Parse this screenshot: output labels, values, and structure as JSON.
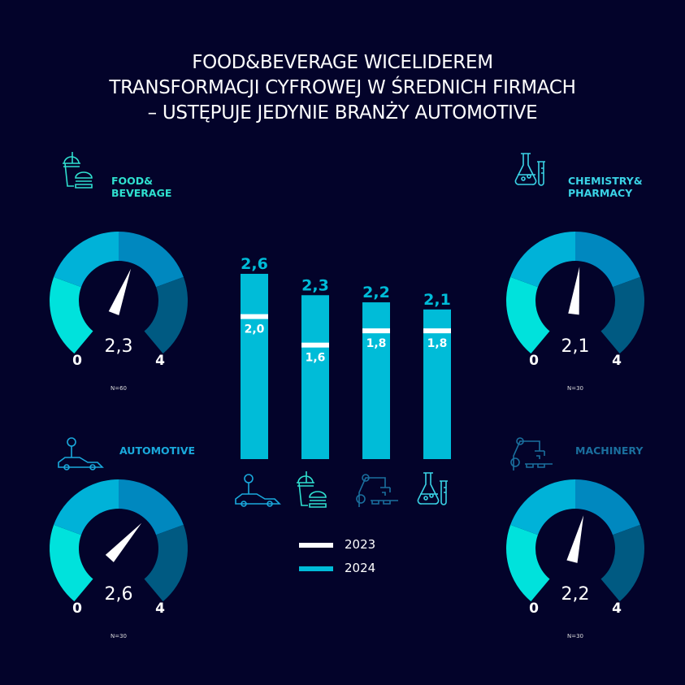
{
  "title_lines": [
    "FOOD&BEVERAGE WICELIDEREM",
    "TRANSFORMACJI CYFROWEJ W ŚREDNICH FIRMACH",
    "– USTĘPUJE JEDYNIE BRANŻY AUTOMOTIVE"
  ],
  "colors": {
    "background": "#03032a",
    "seg1": "#00e2dc",
    "seg2": "#00b2d8",
    "seg3": "#0088bf",
    "seg4": "#005a82",
    "bar": "#00bcd8",
    "marker": "#ffffff"
  },
  "gauges": [
    {
      "label_lines": [
        "FOOD&",
        "BEVERAGE"
      ],
      "value": 2.3,
      "value_label": "2,3",
      "min_label": "0",
      "max_label": "4",
      "n_label": "N=60",
      "icon": "drink-burger-icon",
      "label_color": "#2fe0cf"
    },
    {
      "label_lines": [
        "CHEMISTRY&",
        "PHARMACY"
      ],
      "value": 2.1,
      "value_label": "2,1",
      "min_label": "0",
      "max_label": "4",
      "n_label": "N=30",
      "icon": "flask-test-tube-icon",
      "label_color": "#3ad3e6"
    },
    {
      "label_lines": [
        "AUTOMOTIVE"
      ],
      "value": 2.6,
      "value_label": "2,6",
      "min_label": "0",
      "max_label": "4",
      "n_label": "N=30",
      "icon": "car-robot-icon",
      "label_color": "#1aa9dc"
    },
    {
      "label_lines": [
        "MACHINERY"
      ],
      "value": 2.2,
      "value_label": "2,2",
      "min_label": "0",
      "max_label": "4",
      "n_label": "N=30",
      "icon": "robot-arm-icon",
      "label_color": "#1a6f9e"
    }
  ],
  "chart_data": {
    "type": "bar",
    "categories": [
      "Automotive",
      "Food&Beverage",
      "Machinery",
      "Chemistry&Pharmacy"
    ],
    "category_icons": [
      "car-robot-icon",
      "drink-burger-icon",
      "robot-arm-icon",
      "flask-test-tube-icon"
    ],
    "series": [
      {
        "name": "2024",
        "values": [
          2.6,
          2.3,
          2.2,
          2.1
        ],
        "labels": [
          "2,6",
          "2,3",
          "2,2",
          "2,1"
        ]
      },
      {
        "name": "2023",
        "values": [
          2.0,
          1.6,
          1.8,
          1.8
        ],
        "labels": [
          "2,0",
          "1,6",
          "1,8",
          "1,8"
        ]
      }
    ],
    "ylim": [
      0,
      4
    ],
    "legend": [
      {
        "label": "2023",
        "color": "#ffffff"
      },
      {
        "label": "2024",
        "color": "#00bcd8"
      }
    ],
    "legend_position": "bottom"
  }
}
